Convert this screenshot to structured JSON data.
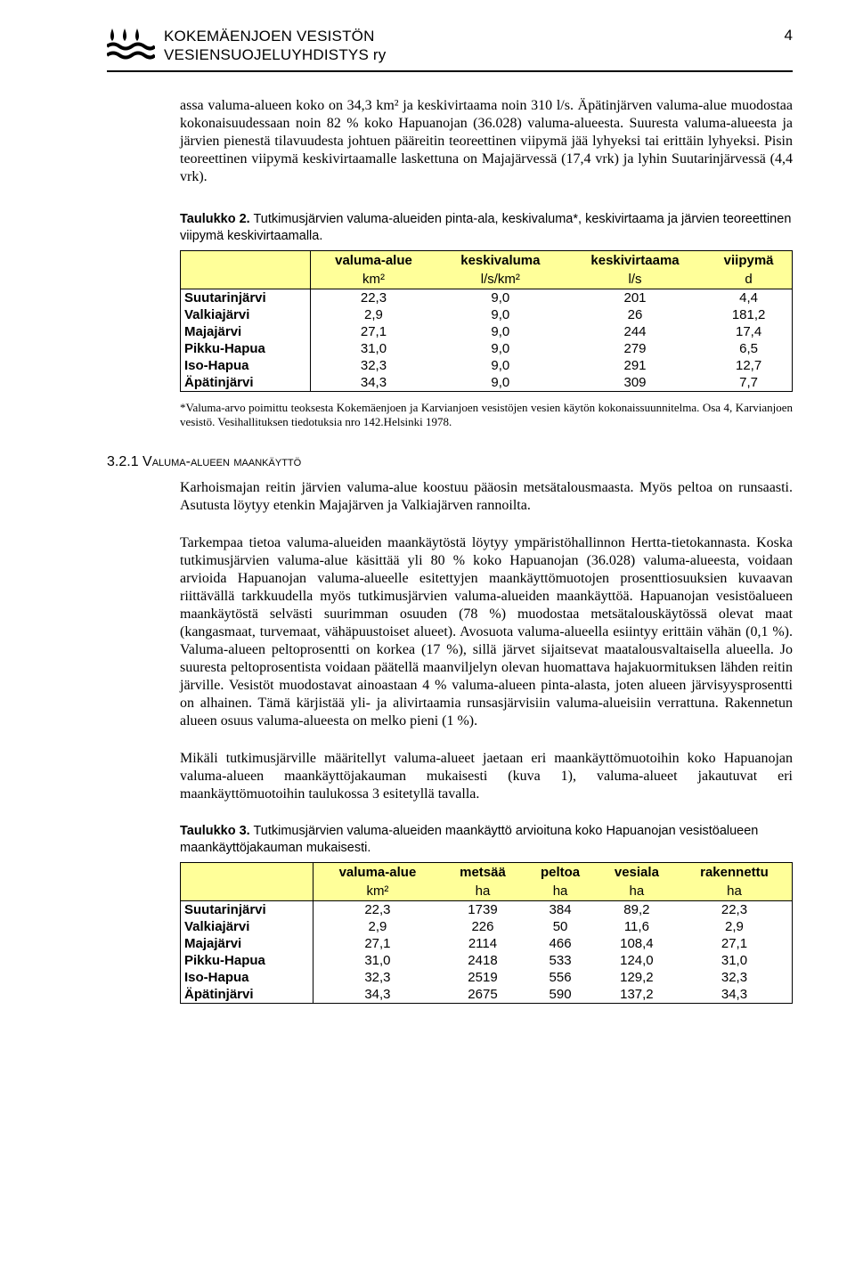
{
  "header": {
    "org_line1": "KOKEMÄENJOEN VESISTÖN",
    "org_line2": "VESIENSUOJELUYHDISTYS ry",
    "page_number": "4"
  },
  "intro_para": "assa valuma-alueen koko on 34,3 km² ja keskivirtaama noin 310 l/s. Äpätinjärven valuma-alue muodostaa kokonaisuudessaan noin 82 % koko Hapuanojan (36.028) valuma-alueesta. Suuresta valuma-alueesta ja järvien pienestä tilavuudesta johtuen pääreitin teoreettinen viipymä jää lyhyeksi tai erittäin lyhyeksi. Pisin teoreettinen viipymä keskivirtaamalle laskettuna on Majajärvessä (17,4 vrk) ja lyhin Suutarinjärvessä (4,4 vrk).",
  "table2": {
    "caption_bold": "Taulukko 2.",
    "caption_rest": " Tutkimusjärvien valuma-alueiden pinta-ala, keskivaluma*, keskivirtaama ja järvien teoreettinen viipymä keskivirtaamalla.",
    "headers": [
      "",
      "valuma-alue",
      "keskivaluma",
      "keskivirtaama",
      "viipymä"
    ],
    "units": [
      "",
      "km²",
      "l/s/km²",
      "l/s",
      "d"
    ],
    "rows": [
      [
        "Suutarinjärvi",
        "22,3",
        "9,0",
        "201",
        "4,4"
      ],
      [
        "Valkiajärvi",
        "2,9",
        "9,0",
        "26",
        "181,2"
      ],
      [
        "Majajärvi",
        "27,1",
        "9,0",
        "244",
        "17,4"
      ],
      [
        "Pikku-Hapua",
        "31,0",
        "9,0",
        "279",
        "6,5"
      ],
      [
        "Iso-Hapua",
        "32,3",
        "9,0",
        "291",
        "12,7"
      ],
      [
        "Äpätinjärvi",
        "34,3",
        "9,0",
        "309",
        "7,7"
      ]
    ],
    "footnote": "*Valuma-arvo poimittu teoksesta Kokemäenjoen ja Karvianjoen vesistöjen vesien käytön kokonaissuunnitelma. Osa 4, Karvianjoen vesistö. Vesihallituksen tiedotuksia nro 142.Helsinki 1978."
  },
  "section": {
    "num": "3.2.1",
    "title": " Valuma-alueen maankäyttö"
  },
  "para1": "Karhoismajan reitin järvien valuma-alue koostuu pääosin metsätalousmaasta. Myös peltoa on runsaasti. Asutusta löytyy etenkin Majajärven ja Valkiajärven rannoilta.",
  "para2": "Tarkempaa tietoa valuma-alueiden maankäytöstä löytyy ympäristöhallinnon Hertta-tietokannasta. Koska tutkimusjärvien valuma-alue käsittää yli 80 % koko Hapuanojan (36.028) valuma-alueesta, voidaan arvioida Hapuanojan valuma-alueelle esitettyjen maankäyttömuotojen prosenttiosuuksien kuvaavan riittävällä tarkkuudella myös tutkimusjärvien valuma-alueiden maankäyttöä. Hapuanojan vesistöalueen maankäytöstä selvästi suurimman osuuden (78 %) muodostaa metsätalouskäytössä olevat maat (kangasmaat, turvemaat, vähäpuustoiset alueet). Avosuota valuma-alueella esiintyy erittäin vähän (0,1 %). Valuma-alueen peltoprosentti on korkea (17 %), sillä järvet sijaitsevat maatalousvaltaisella alueella. Jo suuresta peltoprosentista voidaan päätellä maanviljelyn olevan huomattava hajakuormituksen lähden reitin järville. Vesistöt muodostavat ainoastaan 4 % valuma-alueen pinta-alasta, joten alueen järvisyysprosentti on alhainen. Tämä kärjistää yli- ja alivirtaamia runsasjärvisiin valuma-alueisiin verrattuna. Rakennetun alueen osuus valuma-alueesta on melko pieni (1 %).",
  "para3": "Mikäli tutkimusjärville määritellyt valuma-alueet jaetaan eri maankäyttömuotoihin koko Hapuanojan valuma-alueen maankäyttöjakauman mukaisesti (kuva 1), valuma-alueet jakautuvat eri maankäyttömuotoihin taulukossa 3 esitetyllä tavalla.",
  "table3": {
    "caption_bold": "Taulukko 3.",
    "caption_rest": " Tutkimusjärvien valuma-alueiden maankäyttö arvioituna koko Hapuanojan vesistöalueen maankäyttöjakauman mukaisesti.",
    "headers": [
      "",
      "valuma-alue",
      "metsää",
      "peltoa",
      "vesiala",
      "rakennettu"
    ],
    "units": [
      "",
      "km²",
      "ha",
      "ha",
      "ha",
      "ha"
    ],
    "rows": [
      [
        "Suutarinjärvi",
        "22,3",
        "1739",
        "384",
        "89,2",
        "22,3"
      ],
      [
        "Valkiajärvi",
        "2,9",
        "226",
        "50",
        "11,6",
        "2,9"
      ],
      [
        "Majajärvi",
        "27,1",
        "2114",
        "466",
        "108,4",
        "27,1"
      ],
      [
        "Pikku-Hapua",
        "31,0",
        "2418",
        "533",
        "124,0",
        "31,0"
      ],
      [
        "Iso-Hapua",
        "32,3",
        "2519",
        "556",
        "129,2",
        "32,3"
      ],
      [
        "Äpätinjärvi",
        "34,3",
        "2675",
        "590",
        "137,2",
        "34,3"
      ]
    ]
  },
  "colors": {
    "header_bg": "#ffff99",
    "text": "#000000",
    "bg": "#ffffff"
  }
}
